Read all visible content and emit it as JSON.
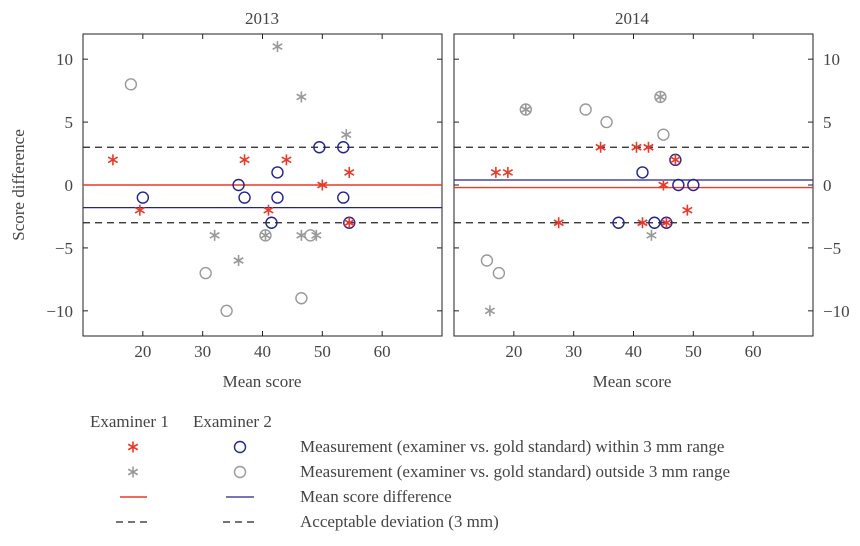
{
  "chart_data": {
    "type": "scatter",
    "ylabel": "Score difference",
    "ylim": [
      -12,
      12
    ],
    "yticks": [
      -10,
      -5,
      0,
      5,
      10
    ],
    "xlim": [
      10,
      70
    ],
    "xticks": [
      20,
      30,
      40,
      50,
      60
    ],
    "colors": {
      "examiner1": "#e8392a",
      "examiner2": "#23238e",
      "outside": "#999999",
      "dashed": "#222222"
    },
    "panels": [
      {
        "title": "2013",
        "xlabel": "Mean score",
        "mean_difference": {
          "examiner1": 0.0,
          "examiner2": -1.8
        },
        "acceptable_deviation": [
          3,
          -3
        ],
        "examiner1_within": [
          [
            15,
            2
          ],
          [
            19.5,
            -2
          ],
          [
            37,
            2
          ],
          [
            41,
            -2
          ],
          [
            44,
            2
          ],
          [
            50,
            0
          ],
          [
            54.5,
            1
          ],
          [
            54.5,
            -3
          ]
        ],
        "examiner1_outside": [
          [
            42.5,
            11
          ],
          [
            46.5,
            7
          ],
          [
            54,
            4
          ],
          [
            36,
            -6
          ],
          [
            32,
            -4
          ],
          [
            40.5,
            -4
          ],
          [
            46.5,
            -4
          ],
          [
            49,
            -4
          ]
        ],
        "examiner2_within": [
          [
            20,
            -1
          ],
          [
            36,
            0
          ],
          [
            37,
            -1
          ],
          [
            41.5,
            -3
          ],
          [
            42.5,
            1
          ],
          [
            42.5,
            -1
          ],
          [
            49.5,
            3
          ],
          [
            53.5,
            3
          ],
          [
            53.5,
            -1
          ],
          [
            54.5,
            -3
          ]
        ],
        "examiner2_outside": [
          [
            18,
            8
          ],
          [
            30.5,
            -7
          ],
          [
            34,
            -10
          ],
          [
            40.5,
            -4
          ],
          [
            46.5,
            -9
          ],
          [
            48,
            -4
          ]
        ]
      },
      {
        "title": "2014",
        "xlabel": "Mean score",
        "mean_difference": {
          "examiner1": -0.2,
          "examiner2": 0.4
        },
        "acceptable_deviation": [
          3,
          -3
        ],
        "examiner1_within": [
          [
            17,
            1
          ],
          [
            19,
            1
          ],
          [
            27.5,
            -3
          ],
          [
            34.5,
            3
          ],
          [
            40.5,
            3
          ],
          [
            42.5,
            3
          ],
          [
            41.5,
            -3
          ],
          [
            45,
            0
          ],
          [
            45.5,
            -3
          ],
          [
            47,
            2
          ],
          [
            49,
            -2
          ]
        ],
        "examiner1_outside": [
          [
            22,
            6
          ],
          [
            44.5,
            7
          ],
          [
            43,
            -4
          ],
          [
            16,
            -10
          ]
        ],
        "examiner2_within": [
          [
            37.5,
            -3
          ],
          [
            41.5,
            1
          ],
          [
            43.5,
            -3
          ],
          [
            45.5,
            -3
          ],
          [
            47,
            2
          ],
          [
            47.5,
            0
          ],
          [
            50,
            0
          ]
        ],
        "examiner2_outside": [
          [
            15.5,
            -6
          ],
          [
            17.5,
            -7
          ],
          [
            22,
            6
          ],
          [
            32,
            6
          ],
          [
            35.5,
            5
          ],
          [
            44.5,
            7
          ],
          [
            45,
            4
          ]
        ]
      }
    ],
    "legend": {
      "header_examiner1": "Examiner 1",
      "header_examiner2": "Examiner 2",
      "entries": [
        "Measurement (examiner vs. gold standard) within 3 mm range",
        "Measurement (examiner vs. gold standard) outside 3 mm range",
        "Mean score difference",
        "Acceptable deviation (3 mm)"
      ]
    }
  }
}
